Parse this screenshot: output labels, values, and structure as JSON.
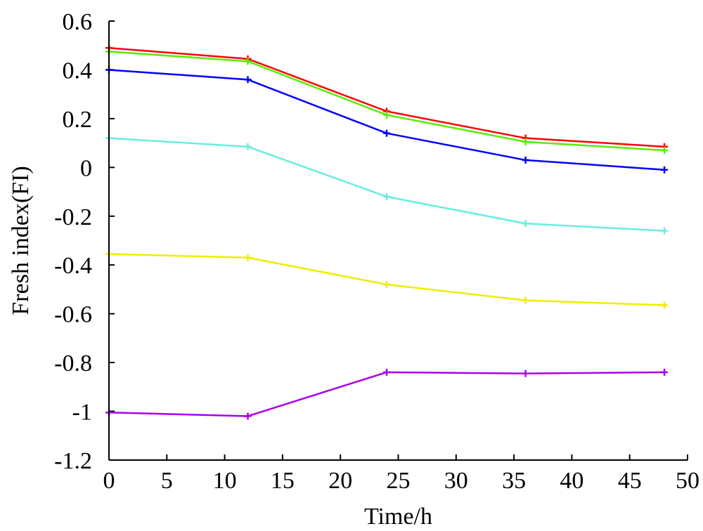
{
  "chart_data": {
    "type": "line",
    "xlabel": "Time/h",
    "ylabel": "Fresh index(FI)",
    "xlim": [
      0,
      50
    ],
    "ylim": [
      -1.2,
      0.6
    ],
    "xticks": [
      0,
      5,
      10,
      15,
      20,
      25,
      30,
      35,
      40,
      45,
      50
    ],
    "yticks": [
      0.6,
      0.4,
      0.2,
      0,
      -0.2,
      -0.4,
      -0.6,
      -0.8,
      -1,
      -1.2
    ],
    "x": [
      0,
      12,
      24,
      36,
      48
    ],
    "grid": false,
    "series": [
      {
        "color": "#ff0000",
        "values": [
          0.49,
          0.445,
          0.23,
          0.12,
          0.085
        ]
      },
      {
        "color": "#55ee00",
        "values": [
          0.475,
          0.435,
          0.215,
          0.105,
          0.07
        ]
      },
      {
        "color": "#0000ff",
        "values": [
          0.4,
          0.36,
          0.14,
          0.03,
          -0.01
        ]
      },
      {
        "color": "#66eedd",
        "values": [
          0.12,
          0.085,
          -0.12,
          -0.23,
          -0.26
        ]
      },
      {
        "color": "#eeee00",
        "values": [
          -0.355,
          -0.37,
          -0.48,
          -0.545,
          -0.565
        ]
      },
      {
        "color": "#aa00ee",
        "values": [
          -1.005,
          -1.02,
          -0.84,
          -0.845,
          -0.84
        ]
      }
    ]
  }
}
